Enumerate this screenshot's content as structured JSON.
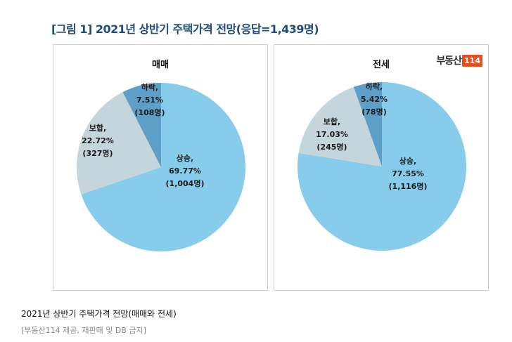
{
  "title": "[그림 1] 2021년 상반기 주택가격 전망(응답=1,439명)",
  "logo": {
    "text": "부동산",
    "number": "114"
  },
  "caption": "2021년 상반기 주택가격 전망(매매와 전세)",
  "source": "[부동산114 제공, 재판매 및 DB 금지]",
  "colors": {
    "rise": "#87cceb",
    "flat": "#c5d5dc",
    "fall": "#5d9fc7"
  },
  "chart_data": [
    {
      "type": "pie",
      "title": "매매",
      "slices": [
        {
          "name": "상승",
          "percent": 69.77,
          "count": 1004,
          "pct_text": "69.77%",
          "count_text": "(1,004명)"
        },
        {
          "name": "보합",
          "percent": 22.72,
          "count": 327,
          "pct_text": "22.72%",
          "count_text": "(327명)"
        },
        {
          "name": "하락",
          "percent": 7.51,
          "count": 108,
          "pct_text": "7.51%",
          "count_text": "(108명)"
        }
      ]
    },
    {
      "type": "pie",
      "title": "전세",
      "slices": [
        {
          "name": "상승",
          "percent": 77.55,
          "count": 1116,
          "pct_text": "77.55%",
          "count_text": "(1,116명)"
        },
        {
          "name": "보합",
          "percent": 17.03,
          "count": 245,
          "pct_text": "17.03%",
          "count_text": "(245명)"
        },
        {
          "name": "하락",
          "percent": 5.42,
          "count": 78,
          "pct_text": "5.42%",
          "count_text": "(78명)"
        }
      ]
    }
  ]
}
